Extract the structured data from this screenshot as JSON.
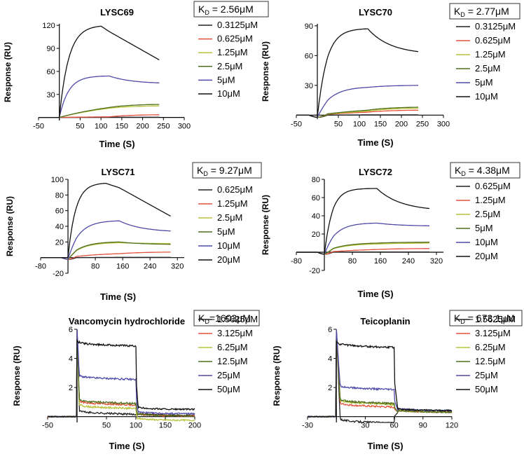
{
  "chart_data": [
    {
      "type": "line",
      "title": "LYSC69",
      "kd_label": "K",
      "kd_sub": "D",
      "kd_value": " = 2.56μM",
      "xlabel": "Time (S)",
      "ylabel": "Response (RU)",
      "xlim": [
        -50,
        300
      ],
      "ylim": [
        -4,
        122
      ],
      "xticks": [
        -50,
        0,
        50,
        100,
        150,
        200,
        250,
        300
      ],
      "xtick_labels": [
        "-50",
        "",
        "50",
        "100",
        "150",
        "200",
        "250",
        "300"
      ],
      "yticks": [
        0,
        30,
        60,
        90,
        120
      ],
      "ytick_labels": [
        "",
        "30",
        "60",
        "90",
        "120"
      ],
      "inject_end": 120,
      "series": [
        {
          "name": "0.3125μM",
          "color": "#222222",
          "peak": 0.3,
          "end": 0.3,
          "k": 0.006,
          "baseline": "flat",
          "tail_end": 240
        },
        {
          "name": "0.625μM",
          "color": "#e4503a",
          "peak": 0.8,
          "end": 3.5,
          "k": 0.006,
          "baseline": "flat",
          "tail_end": 240
        },
        {
          "name": "1.25μM",
          "color": "#b8c23a",
          "peak": 12,
          "end": 15,
          "k": 0.006,
          "baseline": "flat",
          "tail_end": 240
        },
        {
          "name": "2.5μM",
          "color": "#4f6f1e",
          "peak": 13,
          "end": 17,
          "k": 0.006,
          "baseline": "flat",
          "tail_end": 240
        },
        {
          "name": "5μM",
          "color": "#4f4aa8",
          "peak": 54,
          "end": 45,
          "k": 0.045,
          "baseline": "flat",
          "tail_end": 240
        },
        {
          "name": "10μM",
          "color": "#111111",
          "peak": 119,
          "end": 75,
          "k": 0.075,
          "baseline": "flat",
          "tail_end": 240,
          "peak_t": 100
        }
      ]
    },
    {
      "type": "line",
      "title": "LYSC70",
      "kd_label": "K",
      "kd_sub": "D",
      "kd_value": " = 2.77μM",
      "xlabel": "Time (S)",
      "ylabel": "Response (RU)",
      "xlim": [
        -50,
        300
      ],
      "ylim": [
        -4,
        92
      ],
      "xticks": [
        -50,
        0,
        50,
        100,
        150,
        200,
        250,
        300
      ],
      "xtick_labels": [
        "-50",
        "",
        "50",
        "100",
        "150",
        "200",
        "250",
        "300"
      ],
      "yticks": [
        0,
        30,
        60,
        90
      ],
      "ytick_labels": [
        "",
        "30",
        "60",
        "90"
      ],
      "inject_end": 120,
      "series": [
        {
          "name": "0.3125μM",
          "color": "#222222",
          "peak": 0.3,
          "end": 0.3,
          "k": 0.006,
          "baseline": "dip",
          "tail_end": 240
        },
        {
          "name": "0.625μM",
          "color": "#e4503a",
          "peak": 3,
          "end": 5,
          "k": 0.006,
          "baseline": "dip",
          "tail_end": 240
        },
        {
          "name": "1.25μM",
          "color": "#b8c23a",
          "peak": 4,
          "end": 7,
          "k": 0.006,
          "baseline": "dip",
          "tail_end": 240
        },
        {
          "name": "2.5μM",
          "color": "#4f6f1e",
          "peak": 5,
          "end": 8,
          "k": 0.006,
          "baseline": "dip",
          "tail_end": 240
        },
        {
          "name": "5μM",
          "color": "#4f4aa8",
          "peak": 28,
          "end": 30,
          "k": 0.03,
          "baseline": "dip",
          "tail_end": 240
        },
        {
          "name": "10μM",
          "color": "#111111",
          "peak": 87,
          "end": 64,
          "k": 0.045,
          "baseline": "dip",
          "tail_end": 240
        }
      ]
    },
    {
      "type": "line",
      "title": "LYSC71",
      "kd_label": "K",
      "kd_sub": "D",
      "kd_value": " = 9.27μM",
      "xlabel": "Time (S)",
      "ylabel": "Response (RU)",
      "xlim": [
        -80,
        340
      ],
      "ylim": [
        -20,
        100
      ],
      "xticks": [
        -80,
        0,
        80,
        160,
        240,
        320
      ],
      "xtick_labels": [
        "-80",
        "",
        "80",
        "160",
        "240",
        "320"
      ],
      "yticks": [
        -20,
        0,
        20,
        40,
        60,
        80,
        100
      ],
      "ytick_labels": [
        "-20",
        "",
        "20",
        "40",
        "60",
        "80",
        "100"
      ],
      "inject_end": 150,
      "series": [
        {
          "name": "0.625μM",
          "color": "#222222",
          "peak": 0.3,
          "end": 0.3,
          "k": 0.006,
          "baseline": "dip",
          "tail_end": 300
        },
        {
          "name": "1.25μM",
          "color": "#e4503a",
          "peak": 5,
          "end": 7,
          "k": 0.01,
          "baseline": "dip",
          "tail_end": 300
        },
        {
          "name": "2.5μM",
          "color": "#b8c23a",
          "peak": 19,
          "end": 18,
          "k": 0.025,
          "baseline": "dip",
          "tail_end": 300
        },
        {
          "name": "5μM",
          "color": "#4f6f1e",
          "peak": 20,
          "end": 17,
          "k": 0.025,
          "baseline": "dip",
          "tail_end": 300
        },
        {
          "name": "10μM",
          "color": "#4f4aa8",
          "peak": 47,
          "end": 34,
          "k": 0.03,
          "baseline": "dip",
          "tail_end": 300
        },
        {
          "name": "20μM",
          "color": "#111111",
          "peak": 95,
          "end": 53,
          "k": 0.045,
          "baseline": "dip",
          "tail_end": 300,
          "peak_t": 110
        }
      ]
    },
    {
      "type": "line",
      "title": "LYSC72",
      "kd_label": "K",
      "kd_sub": "D",
      "kd_value": " = 4.38μM",
      "xlabel": "Time (S)",
      "ylabel": "Response (RU)",
      "xlim": [
        -80,
        340
      ],
      "ylim": [
        -20,
        80
      ],
      "xticks": [
        -80,
        0,
        80,
        160,
        240,
        320
      ],
      "xtick_labels": [
        "-80",
        "",
        "80",
        "160",
        "240",
        "320"
      ],
      "yticks": [
        -20,
        0,
        20,
        40,
        60,
        80
      ],
      "ytick_labels": [
        "-20",
        "",
        "20",
        "40",
        "60",
        "80"
      ],
      "inject_end": 150,
      "series": [
        {
          "name": "0.625μM",
          "color": "#222222",
          "peak": 0.3,
          "end": 0.3,
          "k": 0.006,
          "baseline": "dip",
          "tail_end": 300
        },
        {
          "name": "1.25μM",
          "color": "#e4503a",
          "peak": 3,
          "end": 4,
          "k": 0.006,
          "baseline": "dip",
          "tail_end": 300
        },
        {
          "name": "2.5μM",
          "color": "#b8c23a",
          "peak": 9,
          "end": 10,
          "k": 0.02,
          "baseline": "dip",
          "tail_end": 300
        },
        {
          "name": "5μM",
          "color": "#4f6f1e",
          "peak": 10,
          "end": 11,
          "k": 0.02,
          "baseline": "dip",
          "tail_end": 300
        },
        {
          "name": "10μM",
          "color": "#4f4aa8",
          "peak": 32,
          "end": 29,
          "k": 0.03,
          "baseline": "dip",
          "tail_end": 300
        },
        {
          "name": "20μM",
          "color": "#111111",
          "peak": 70,
          "end": 48,
          "k": 0.045,
          "baseline": "dip",
          "tail_end": 300
        }
      ]
    },
    {
      "type": "line",
      "title": "Vancomycin hydrochloride",
      "kd_label": "K",
      "kd_sub": "D",
      "kd_value": "=1603μM",
      "xlabel": "Time (S)",
      "ylabel": "Response (RU)",
      "xlim": [
        -50,
        200
      ],
      "ylim": [
        -0.4,
        6
      ],
      "xticks": [
        -50,
        0,
        50,
        100,
        150,
        200
      ],
      "xtick_labels": [
        "-50",
        "",
        "50",
        "100",
        "150",
        "200"
      ],
      "yticks": [
        0,
        2,
        4,
        6
      ],
      "ytick_labels": [
        "",
        "2",
        "4",
        "6"
      ],
      "inject_end": 100,
      "series": [
        {
          "name": "1.5625μM",
          "color": "#222222",
          "level": 0.3,
          "post": 0.1
        },
        {
          "name": "3.125μM",
          "color": "#e4503a",
          "level": 0.95,
          "post": 0.05
        },
        {
          "name": "6.25μM",
          "color": "#b8c23a",
          "level": 0.7,
          "post": -0.25
        },
        {
          "name": "12.5μM",
          "color": "#4f6f1e",
          "level": 1.05,
          "post": 0.05
        },
        {
          "name": "25μM",
          "color": "#4f4aa8",
          "level": 2.7,
          "post": 0.2
        },
        {
          "name": "50μM",
          "color": "#111111",
          "level": 5.0,
          "post": 0.5
        }
      ]
    },
    {
      "type": "line",
      "title": "Teicoplanin",
      "kd_label": "K",
      "kd_sub": "D",
      "kd_value": " = 673.1μM",
      "xlabel": "Time (S)",
      "ylabel": "Response (RU)",
      "xlim": [
        -30,
        120
      ],
      "ylim": [
        -0.4,
        6
      ],
      "xticks": [
        -30,
        0,
        30,
        60,
        90,
        120
      ],
      "xtick_labels": [
        "-30",
        "",
        "30",
        "60",
        "90",
        "120"
      ],
      "yticks": [
        0,
        2,
        4,
        6
      ],
      "ytick_labels": [
        "",
        "2",
        "4",
        "6"
      ],
      "inject_end": 60,
      "series": [
        {
          "name": "1.5625μM",
          "color": "#222222",
          "level": -0.3,
          "post": 0.3
        },
        {
          "name": "3.125μM",
          "color": "#e4503a",
          "level": 0.8,
          "post": 0.3
        },
        {
          "name": "6.25μM",
          "color": "#b8c23a",
          "level": 1.0,
          "post": 0.3
        },
        {
          "name": "12.5μM",
          "color": "#4f6f1e",
          "level": 1.05,
          "post": 0.3
        },
        {
          "name": "25μM",
          "color": "#4f4aa8",
          "level": 2.0,
          "post": 0.4
        },
        {
          "name": "50μM",
          "color": "#111111",
          "level": 4.9,
          "post": 0.4
        }
      ]
    }
  ]
}
